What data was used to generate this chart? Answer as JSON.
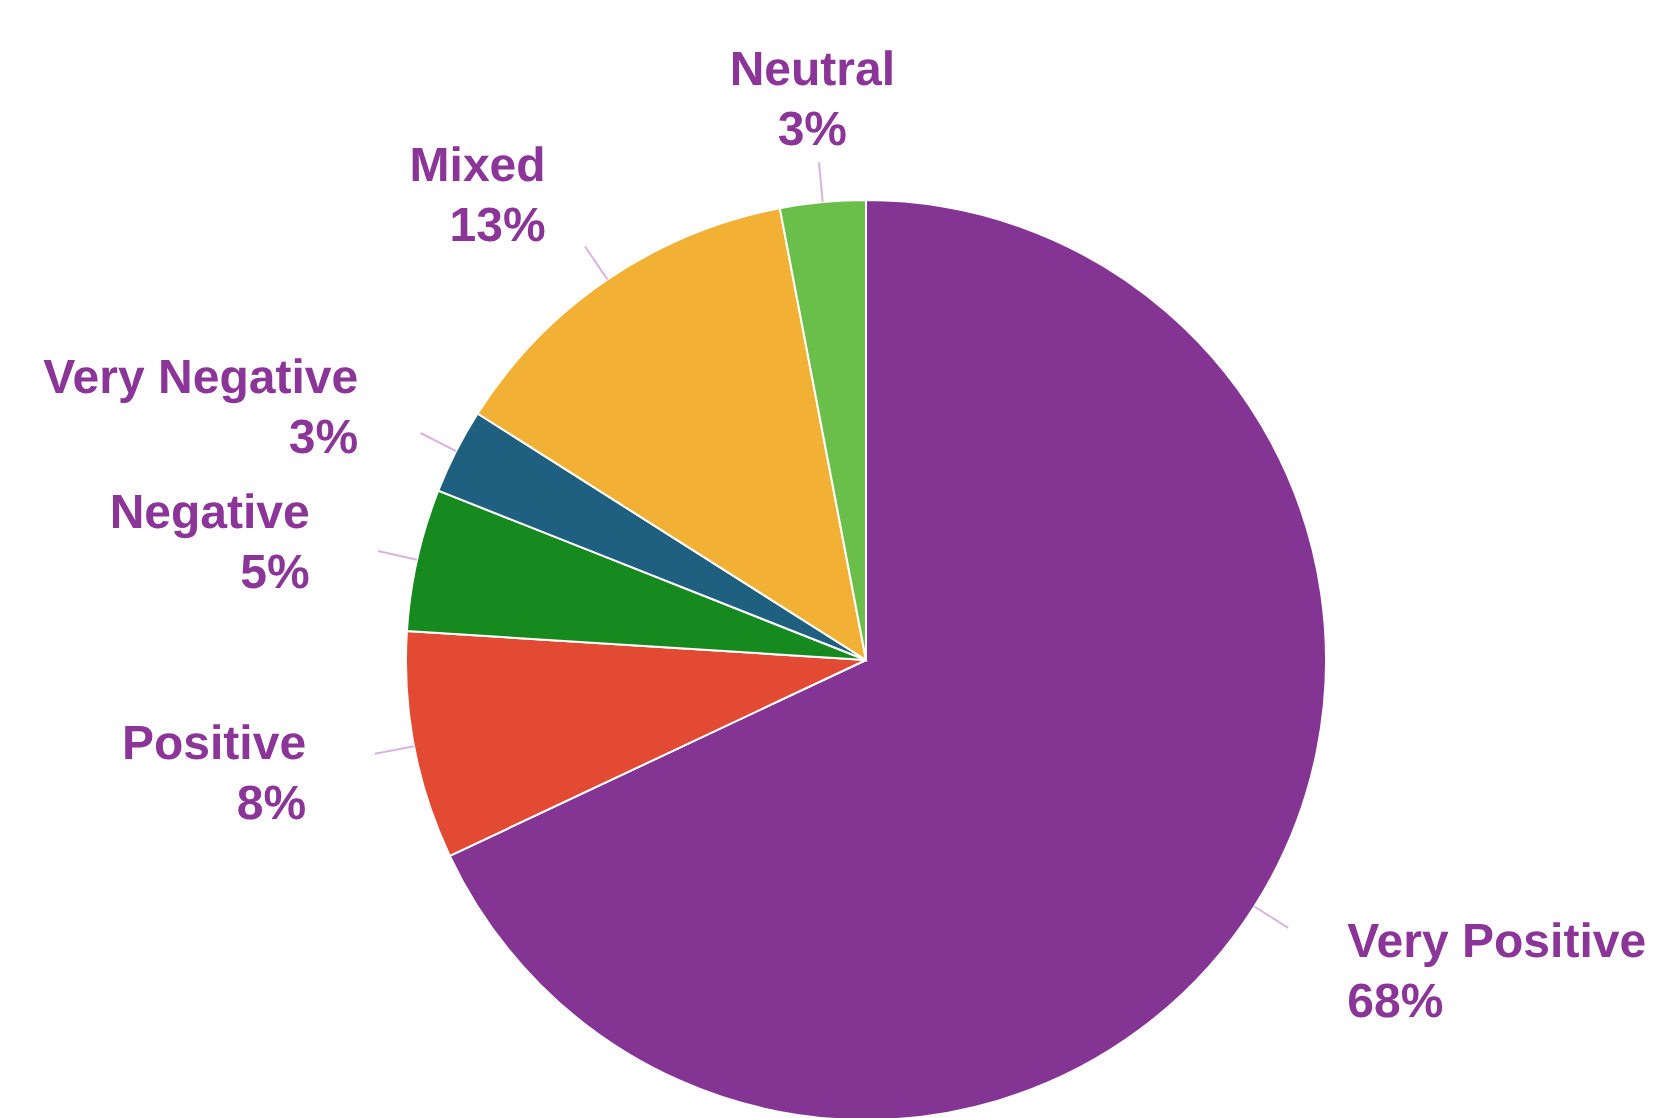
{
  "chart_data": {
    "type": "pie",
    "categories": [
      "Very Positive",
      "Positive",
      "Negative",
      "Very Negative",
      "Mixed",
      "Neutral"
    ],
    "values": [
      68,
      8,
      5,
      3,
      13,
      3
    ],
    "value_labels": [
      "68%",
      "8%",
      "5%",
      "3%",
      "13%",
      "3%"
    ],
    "colors": [
      "#843594",
      "#e34a33",
      "#178a1f",
      "#1f5f7f",
      "#f2b134",
      "#6abf4b"
    ],
    "legend": false
  }
}
